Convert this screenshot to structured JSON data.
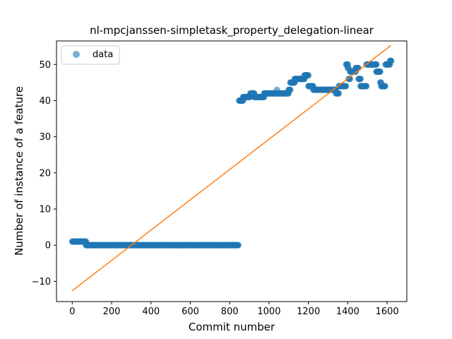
{
  "chart_data": {
    "type": "scatter",
    "title": "nl-mpcjanssen-simpletask_property_delegation-linear",
    "xlabel": "Commit number",
    "ylabel": "Number of instance of a feature",
    "xlim": [
      -80,
      1700
    ],
    "ylim": [
      -15.6,
      56.5
    ],
    "xticks": [
      0,
      200,
      400,
      600,
      800,
      1000,
      1200,
      1400,
      1600
    ],
    "xtick_labels": [
      "0",
      "200",
      "400",
      "600",
      "800",
      "1000",
      "1200",
      "1400",
      "1600"
    ],
    "yticks": [
      -10,
      0,
      10,
      20,
      30,
      40,
      50
    ],
    "ytick_labels": [
      "−10",
      "0",
      "10",
      "20",
      "30",
      "40",
      "50"
    ],
    "legend": {
      "position": "top-left",
      "entries": [
        "data"
      ]
    },
    "grid": false,
    "colors": {
      "data": "#1f77b4",
      "fit": "#ff7f0e"
    },
    "series": [
      {
        "name": "data",
        "style": "markers",
        "segments": [
          {
            "x_start": 0,
            "x_end": 70,
            "y": 1
          },
          {
            "x_start": 70,
            "x_end": 845,
            "y": 0
          },
          {
            "x_start": 848,
            "x_end": 868,
            "y": 40
          },
          {
            "x_start": 868,
            "x_end": 905,
            "y": 41
          },
          {
            "x_start": 905,
            "x_end": 925,
            "y": 42
          },
          {
            "x_start": 925,
            "x_end": 975,
            "y": 41
          },
          {
            "x_start": 975,
            "x_end": 1100,
            "y": 42
          },
          {
            "x_start": 1100,
            "x_end": 1108,
            "y": 43
          },
          {
            "x_start": 1108,
            "x_end": 1130,
            "y": 45
          },
          {
            "x_start": 1130,
            "x_end": 1180,
            "y": 46
          },
          {
            "x_start": 1180,
            "x_end": 1200,
            "y": 47
          },
          {
            "x_start": 1200,
            "x_end": 1225,
            "y": 44
          },
          {
            "x_start": 1225,
            "x_end": 1340,
            "y": 43
          },
          {
            "x_start": 1340,
            "x_end": 1355,
            "y": 42
          },
          {
            "x_start": 1355,
            "x_end": 1392,
            "y": 44
          },
          {
            "x_start": 1392,
            "x_end": 1400,
            "y": 50
          },
          {
            "x_start": 1400,
            "x_end": 1405,
            "y": 49
          },
          {
            "x_start": 1405,
            "x_end": 1412,
            "y": 46
          },
          {
            "x_start": 1412,
            "x_end": 1440,
            "y": 48
          },
          {
            "x_start": 1440,
            "x_end": 1455,
            "y": 49
          },
          {
            "x_start": 1455,
            "x_end": 1465,
            "y": 46
          },
          {
            "x_start": 1465,
            "x_end": 1495,
            "y": 44
          },
          {
            "x_start": 1495,
            "x_end": 1545,
            "y": 50
          },
          {
            "x_start": 1545,
            "x_end": 1565,
            "y": 48
          },
          {
            "x_start": 1565,
            "x_end": 1570,
            "y": 45
          },
          {
            "x_start": 1570,
            "x_end": 1590,
            "y": 44
          },
          {
            "x_start": 1592,
            "x_end": 1615,
            "y": 50
          },
          {
            "x_start": 1615,
            "x_end": 1622,
            "y": 51
          }
        ],
        "points": [
          {
            "x": 1040,
            "y": 43
          },
          {
            "x": 1380,
            "y": 44
          },
          {
            "x": 1545,
            "y": 50
          }
        ]
      },
      {
        "name": "",
        "style": "line",
        "x": [
          0,
          1620
        ],
        "y": [
          -12.6,
          55.3
        ]
      }
    ]
  }
}
